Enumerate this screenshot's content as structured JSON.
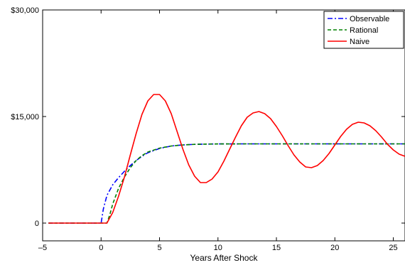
{
  "chart_data": {
    "type": "line",
    "title": "",
    "xlabel": "Years After Shock",
    "ylabel": "",
    "xlim": [
      -5,
      26
    ],
    "ylim": [
      -2500,
      30000
    ],
    "xticks": [
      -5,
      0,
      5,
      10,
      15,
      20,
      25
    ],
    "xtick_labels": [
      "–5",
      "0",
      "5",
      "10",
      "15",
      "20",
      "25"
    ],
    "yticks": [
      0,
      15000,
      30000
    ],
    "ytick_labels": [
      "0",
      "$15,000",
      "$30,000"
    ],
    "grid": false,
    "legend_position": "top-right",
    "series": [
      {
        "name": "Observable",
        "color": "#0000ff",
        "dash": "dash-dot",
        "x": [
          -4.5,
          0,
          0.2,
          0.5,
          1,
          1.5,
          2,
          2.5,
          3,
          3.5,
          4,
          5,
          6,
          7,
          8,
          9,
          10,
          12,
          14,
          16,
          18,
          20,
          22,
          24,
          26
        ],
        "y": [
          0,
          0,
          2000,
          3900,
          5400,
          6400,
          7300,
          8100,
          8800,
          9400,
          9900,
          10500,
          10850,
          11000,
          11080,
          11120,
          11140,
          11150,
          11150,
          11150,
          11150,
          11150,
          11150,
          11150,
          11150
        ]
      },
      {
        "name": "Rational",
        "color": "#008000",
        "dash": "dash",
        "x": [
          -4.5,
          0,
          0.5,
          0.75,
          1,
          1.5,
          2,
          2.5,
          3,
          3.5,
          4,
          5,
          6,
          7,
          8,
          9,
          10,
          12,
          14,
          16,
          18,
          20,
          22,
          24,
          26
        ],
        "y": [
          0,
          0,
          0,
          1200,
          2700,
          4900,
          6500,
          7800,
          8800,
          9500,
          10000,
          10550,
          10850,
          11000,
          11080,
          11120,
          11140,
          11150,
          11150,
          11150,
          11150,
          11150,
          11150,
          11150,
          11150
        ]
      },
      {
        "name": "Naive",
        "color": "#ff0000",
        "dash": "solid",
        "x": [
          -4.5,
          0,
          0.5,
          1,
          1.5,
          2,
          2.5,
          3,
          3.5,
          4,
          4.5,
          5,
          5.5,
          6,
          6.5,
          7,
          7.5,
          8,
          8.5,
          9,
          9.5,
          10,
          10.5,
          11,
          11.5,
          12,
          12.5,
          13,
          13.5,
          14,
          14.5,
          15,
          15.5,
          16,
          16.5,
          17,
          17.5,
          18,
          18.5,
          19,
          19.5,
          20,
          20.5,
          21,
          21.5,
          22,
          22.5,
          23,
          23.5,
          24,
          24.5,
          25,
          25.5,
          26
        ],
        "y": [
          0,
          0,
          0,
          1500,
          3800,
          6500,
          9600,
          12600,
          15300,
          17200,
          18100,
          18100,
          17200,
          15400,
          12900,
          10400,
          8200,
          6600,
          5700,
          5700,
          6200,
          7200,
          8700,
          10400,
          12100,
          13700,
          14900,
          15500,
          15700,
          15400,
          14700,
          13600,
          12300,
          10900,
          9600,
          8600,
          7900,
          7800,
          8100,
          8800,
          9800,
          11000,
          12200,
          13200,
          13900,
          14200,
          14100,
          13700,
          13000,
          12100,
          11100,
          10300,
          9700,
          9400
        ]
      }
    ]
  }
}
